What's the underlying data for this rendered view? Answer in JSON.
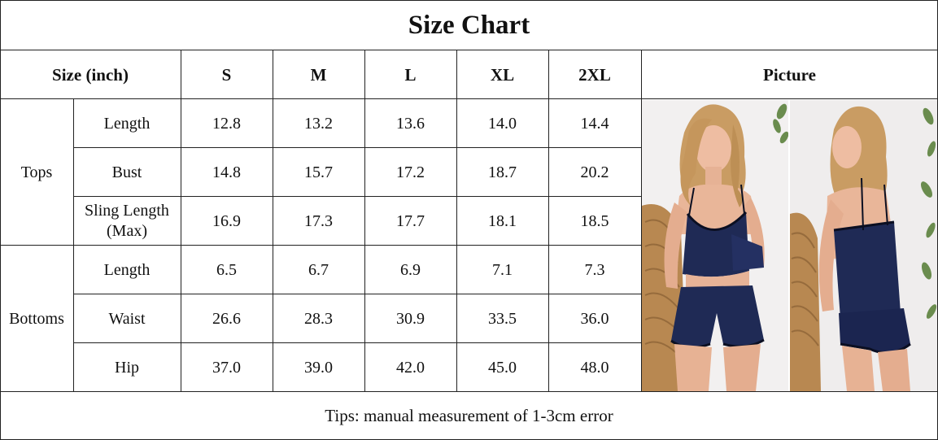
{
  "title": "Size Chart",
  "header": {
    "size_label": "Size (inch)",
    "sizes": [
      "S",
      "M",
      "L",
      "XL",
      "2XL"
    ],
    "picture_label": "Picture"
  },
  "groups": [
    {
      "name": "Tops",
      "rows": [
        {
          "label": "Length",
          "values": [
            "12.8",
            "13.2",
            "13.6",
            "14.0",
            "14.4"
          ]
        },
        {
          "label": "Bust",
          "values": [
            "14.8",
            "15.7",
            "17.2",
            "18.7",
            "20.2"
          ]
        },
        {
          "label_line1": "Sling Length",
          "label_line2": "(Max)",
          "values": [
            "16.9",
            "17.3",
            "17.7",
            "18.1",
            "18.5"
          ]
        }
      ]
    },
    {
      "name": "Bottoms",
      "rows": [
        {
          "label": "Length",
          "values": [
            "6.5",
            "6.7",
            "6.9",
            "7.1",
            "7.3"
          ]
        },
        {
          "label": "Waist",
          "values": [
            "26.6",
            "28.3",
            "30.9",
            "33.5",
            "36.0"
          ]
        },
        {
          "label": "Hip",
          "values": [
            "37.0",
            "39.0",
            "42.0",
            "45.0",
            "48.0"
          ]
        }
      ]
    }
  ],
  "tips": "Tips: manual measurement of 1-3cm error",
  "colors": {
    "border": "#222222",
    "garment": "#1f2a55",
    "garment_trim": "#0b0f22",
    "skin": "#e8b59a",
    "hair": "#c9a06a",
    "backdrop": "#eeecec",
    "chair": "#b5844f"
  }
}
